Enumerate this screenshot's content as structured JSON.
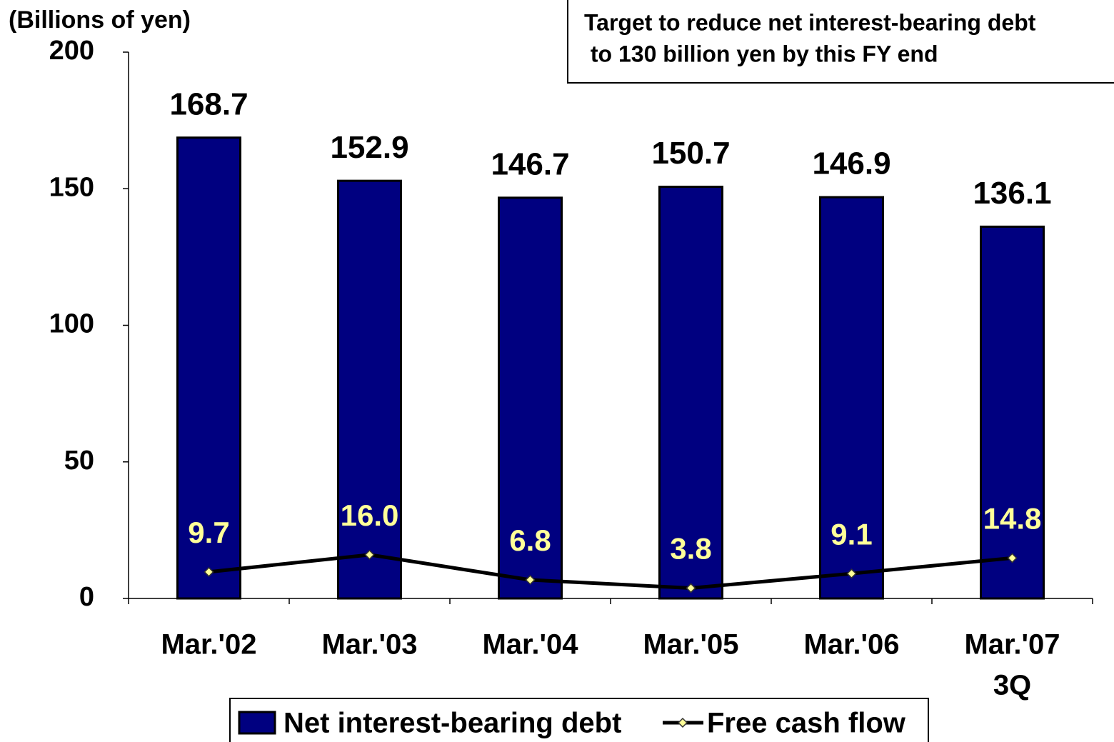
{
  "chart_data": {
    "type": "bar-line",
    "y_axis_label": "(Billions of yen)",
    "annotation": [
      "Target to reduce net interest-bearing debt",
      " to 130 billion yen by this FY end"
    ],
    "categories": [
      [
        "Mar.'02"
      ],
      [
        "Mar.'03"
      ],
      [
        "Mar.'04"
      ],
      [
        "Mar.'05"
      ],
      [
        "Mar.'06"
      ],
      [
        "Mar.'07",
        "3Q"
      ]
    ],
    "series": [
      {
        "name": "Net interest-bearing debt",
        "type": "bar",
        "color": "#000080",
        "values": [
          168.7,
          152.9,
          146.7,
          150.7,
          146.9,
          136.1
        ]
      },
      {
        "name": "Free cash flow",
        "type": "line",
        "color": "#000000",
        "marker_color": "#ffff99",
        "values": [
          9.7,
          16.0,
          6.8,
          3.8,
          9.1,
          14.8
        ],
        "value_labels": [
          "9.7",
          "16.0",
          "6.8",
          "3.8",
          "9.1",
          "14.8"
        ]
      }
    ],
    "ylim": [
      0,
      200
    ],
    "yticks": [
      0,
      50,
      100,
      150,
      200
    ],
    "grid": false,
    "legend": "bottom"
  }
}
